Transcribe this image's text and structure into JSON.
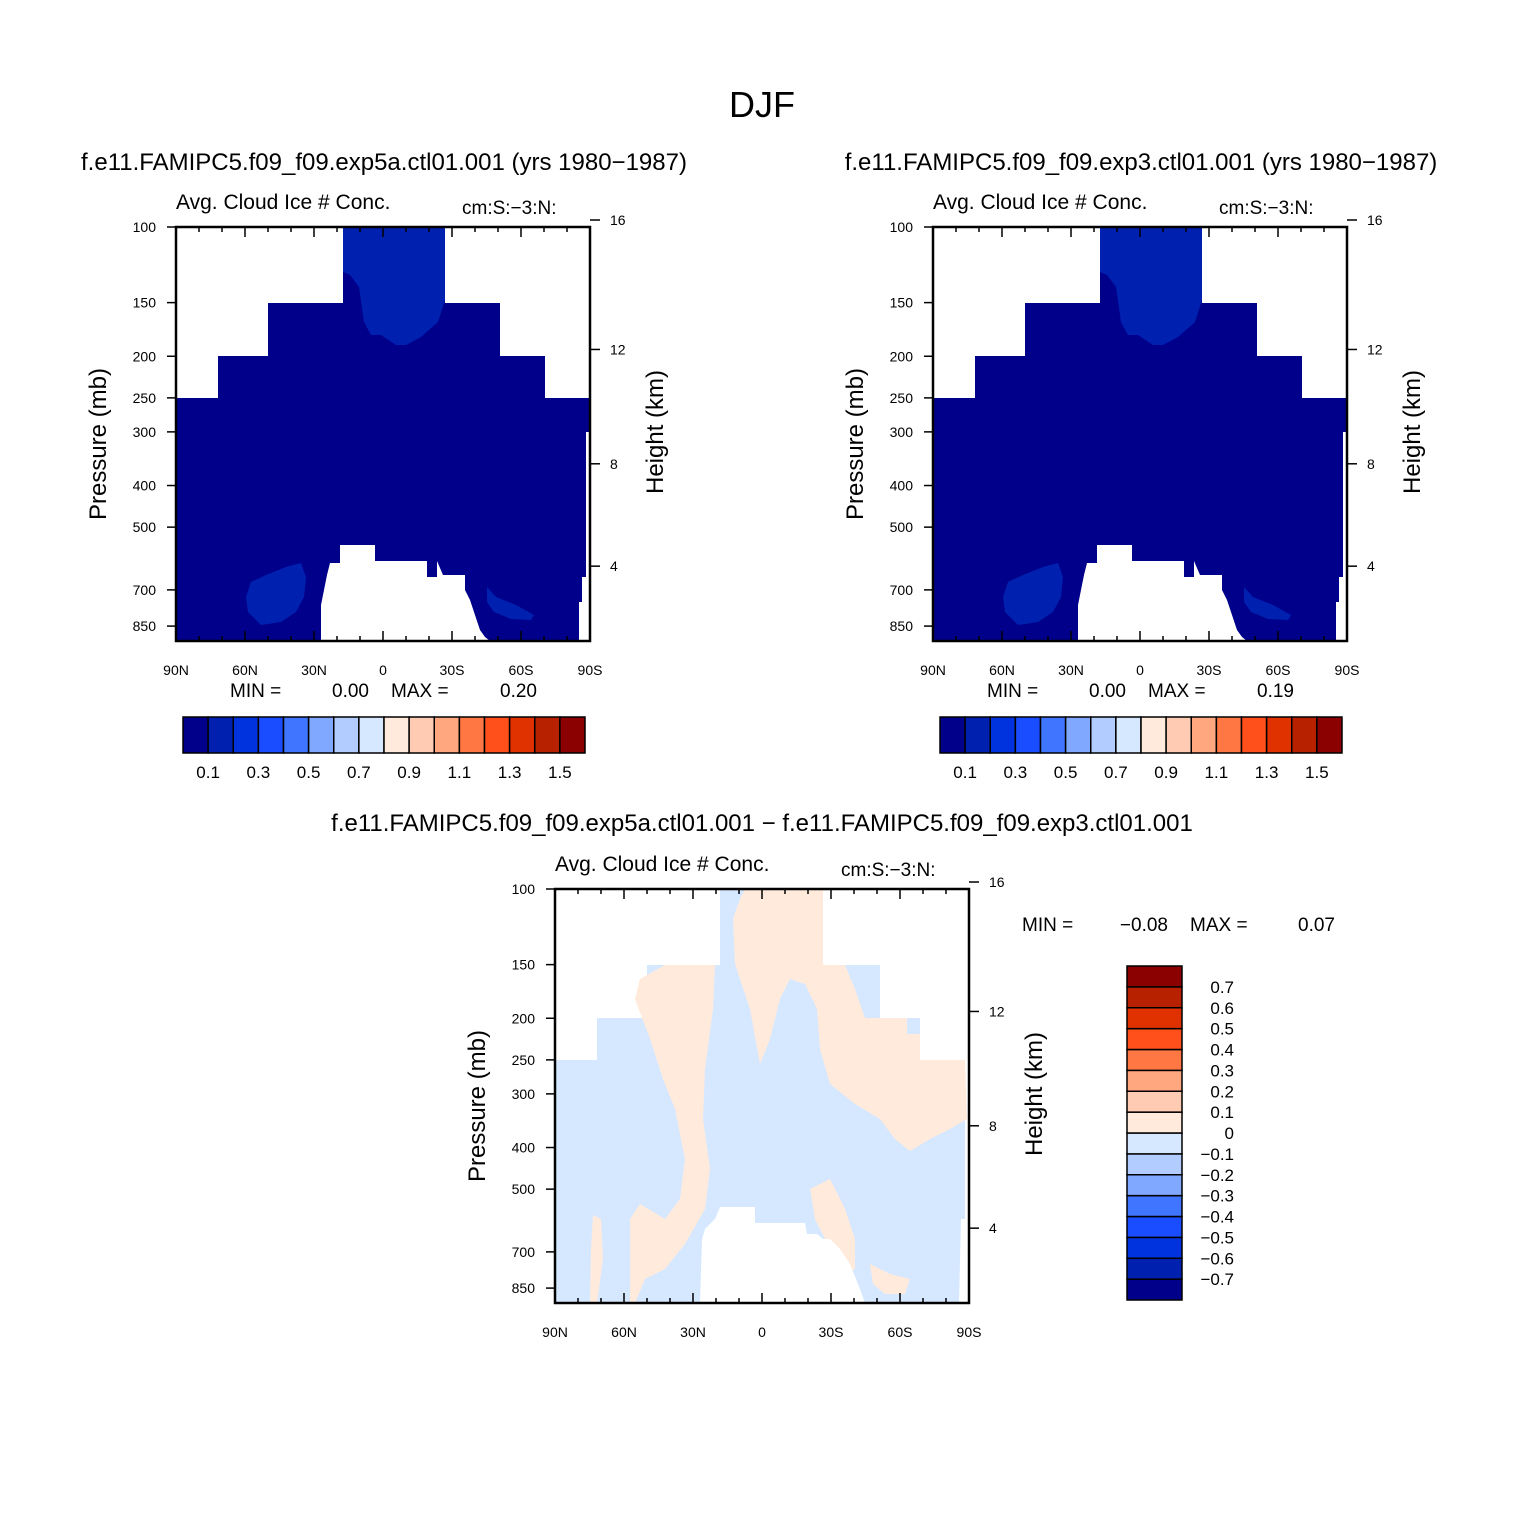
{
  "title": "DJF",
  "colors": [
    "#00008b",
    "#0021b0",
    "#0033dd",
    "#1a4dff",
    "#4075ff",
    "#80a8ff",
    "#b3ccff",
    "#d6e8ff",
    "#ffeadb",
    "#ffccb3",
    "#ffa880",
    "#ff7743",
    "#ff4f1a",
    "#e03200",
    "#b82100",
    "#8b0000"
  ],
  "chart_data": [
    {
      "type": "contour",
      "title": "f.e11.FAMIPC5.f09_f09.exp5a.ctl01.001 (yrs 1980−1987)",
      "left_string": "Avg. Cloud Ice # Conc.",
      "right_string": "cm:S:−3:N:",
      "ylabel": "Pressure (mb)",
      "y2label": "Height (km)",
      "x_ticks": [
        "90N",
        "60N",
        "30N",
        "0",
        "30S",
        "60S",
        "90S"
      ],
      "x_values": [
        90,
        60,
        30,
        0,
        -30,
        -60,
        -90
      ],
      "y_ticks": [
        "100",
        "150",
        "200",
        "250",
        "300",
        "400",
        "500",
        "700",
        "850"
      ],
      "y_values": [
        100,
        150,
        200,
        250,
        300,
        400,
        500,
        700,
        850
      ],
      "y2_ticks": [
        "16",
        "12",
        "8",
        "4"
      ],
      "y2_values": [
        16,
        12,
        8,
        4
      ],
      "min_label": "MIN =",
      "min": "0.00",
      "max_label": "MAX =",
      "max": "0.20",
      "colorbar": {
        "orientation": "horizontal",
        "levels": [
          0.1,
          0.2,
          0.3,
          0.4,
          0.5,
          0.6,
          0.7,
          0.8,
          0.9,
          1.0,
          1.1,
          1.2,
          1.3,
          1.4,
          1.5
        ],
        "labels": [
          "0.1",
          "0.3",
          "0.5",
          "0.7",
          "0.9",
          "1.1",
          "1.3",
          "1.5"
        ]
      }
    },
    {
      "type": "contour",
      "title": "f.e11.FAMIPC5.f09_f09.exp3.ctl01.001 (yrs 1980−1987)",
      "left_string": "Avg. Cloud Ice # Conc.",
      "right_string": "cm:S:−3:N:",
      "ylabel": "Pressure (mb)",
      "y2label": "Height (km)",
      "x_ticks": [
        "90N",
        "60N",
        "30N",
        "0",
        "30S",
        "60S",
        "90S"
      ],
      "x_values": [
        90,
        60,
        30,
        0,
        -30,
        -60,
        -90
      ],
      "y_ticks": [
        "100",
        "150",
        "200",
        "250",
        "300",
        "400",
        "500",
        "700",
        "850"
      ],
      "y_values": [
        100,
        150,
        200,
        250,
        300,
        400,
        500,
        700,
        850
      ],
      "y2_ticks": [
        "16",
        "12",
        "8",
        "4"
      ],
      "y2_values": [
        16,
        12,
        8,
        4
      ],
      "min_label": "MIN =",
      "min": "0.00",
      "max_label": "MAX =",
      "max": "0.19",
      "colorbar": {
        "orientation": "horizontal",
        "levels": [
          0.1,
          0.2,
          0.3,
          0.4,
          0.5,
          0.6,
          0.7,
          0.8,
          0.9,
          1.0,
          1.1,
          1.2,
          1.3,
          1.4,
          1.5
        ],
        "labels": [
          "0.1",
          "0.3",
          "0.5",
          "0.7",
          "0.9",
          "1.1",
          "1.3",
          "1.5"
        ]
      }
    },
    {
      "type": "contour",
      "title": "f.e11.FAMIPC5.f09_f09.exp5a.ctl01.001 − f.e11.FAMIPC5.f09_f09.exp3.ctl01.001",
      "left_string": "Avg. Cloud Ice # Conc.",
      "right_string": "cm:S:−3:N:",
      "ylabel": "Pressure (mb)",
      "y2label": "Height (km)",
      "x_ticks": [
        "90N",
        "60N",
        "30N",
        "0",
        "30S",
        "60S",
        "90S"
      ],
      "x_values": [
        90,
        60,
        30,
        0,
        -30,
        -60,
        -90
      ],
      "y_ticks": [
        "100",
        "150",
        "200",
        "250",
        "300",
        "400",
        "500",
        "700",
        "850"
      ],
      "y_values": [
        100,
        150,
        200,
        250,
        300,
        400,
        500,
        700,
        850
      ],
      "y2_ticks": [
        "16",
        "12",
        "8",
        "4"
      ],
      "y2_values": [
        16,
        12,
        8,
        4
      ],
      "min_label": "MIN =",
      "min": "−0.08",
      "max_label": "MAX =",
      "max": "0.07",
      "colorbar": {
        "orientation": "vertical",
        "levels": [
          -0.7,
          -0.6,
          -0.5,
          -0.4,
          -0.3,
          -0.2,
          -0.1,
          0,
          0.1,
          0.2,
          0.3,
          0.4,
          0.5,
          0.6,
          0.7
        ],
        "labels": [
          "−0.7",
          "−0.6",
          "−0.5",
          "−0.4",
          "−0.3",
          "−0.2",
          "−0.1",
          "0",
          "0.1",
          "0.2",
          "0.3",
          "0.4",
          "0.5",
          "0.6",
          "0.7"
        ]
      }
    }
  ]
}
